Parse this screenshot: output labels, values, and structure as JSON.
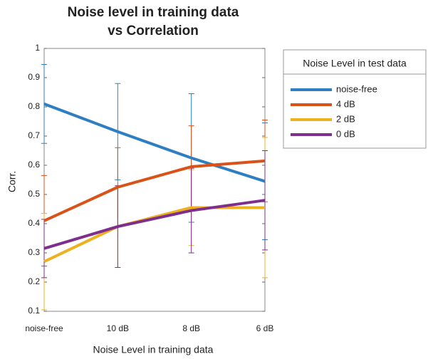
{
  "chart_data": {
    "type": "line",
    "title": [
      "Noise level in training data",
      "vs Correlation"
    ],
    "x_label": "Noise Level in training data",
    "y_label": "Corr.",
    "legend_title": "Noise Level in test data",
    "categories": [
      "noise-free",
      "10 dB",
      "8 dB",
      "6 dB"
    ],
    "ylim": [
      0.1,
      1
    ],
    "yticks": [
      0.1,
      0.2,
      0.3,
      0.4,
      0.5,
      0.6,
      0.7,
      0.8,
      0.9,
      1
    ],
    "series": [
      {
        "name": "noise-free",
        "color": "#2e7fc2",
        "values": [
          0.81,
          0.715,
          0.625,
          0.545
        ],
        "errors": [
          0.135,
          0.165,
          0.22,
          0.2
        ]
      },
      {
        "name": "4 dB",
        "color": "#d95319",
        "values": [
          0.41,
          0.525,
          0.595,
          0.615
        ],
        "errors": [
          0.155,
          0.135,
          0.14,
          0.14
        ]
      },
      {
        "name": "2 dB",
        "color": "#edb120",
        "values": [
          0.27,
          0.39,
          0.455,
          0.455
        ],
        "errors": [
          0.165,
          0.14,
          0.13,
          0.24
        ]
      },
      {
        "name": "0 dB",
        "color": "#7e2f8e",
        "values": [
          0.315,
          0.39,
          0.445,
          0.48
        ],
        "errors": [
          0.1,
          0.14,
          0.145,
          0.17
        ]
      }
    ]
  }
}
